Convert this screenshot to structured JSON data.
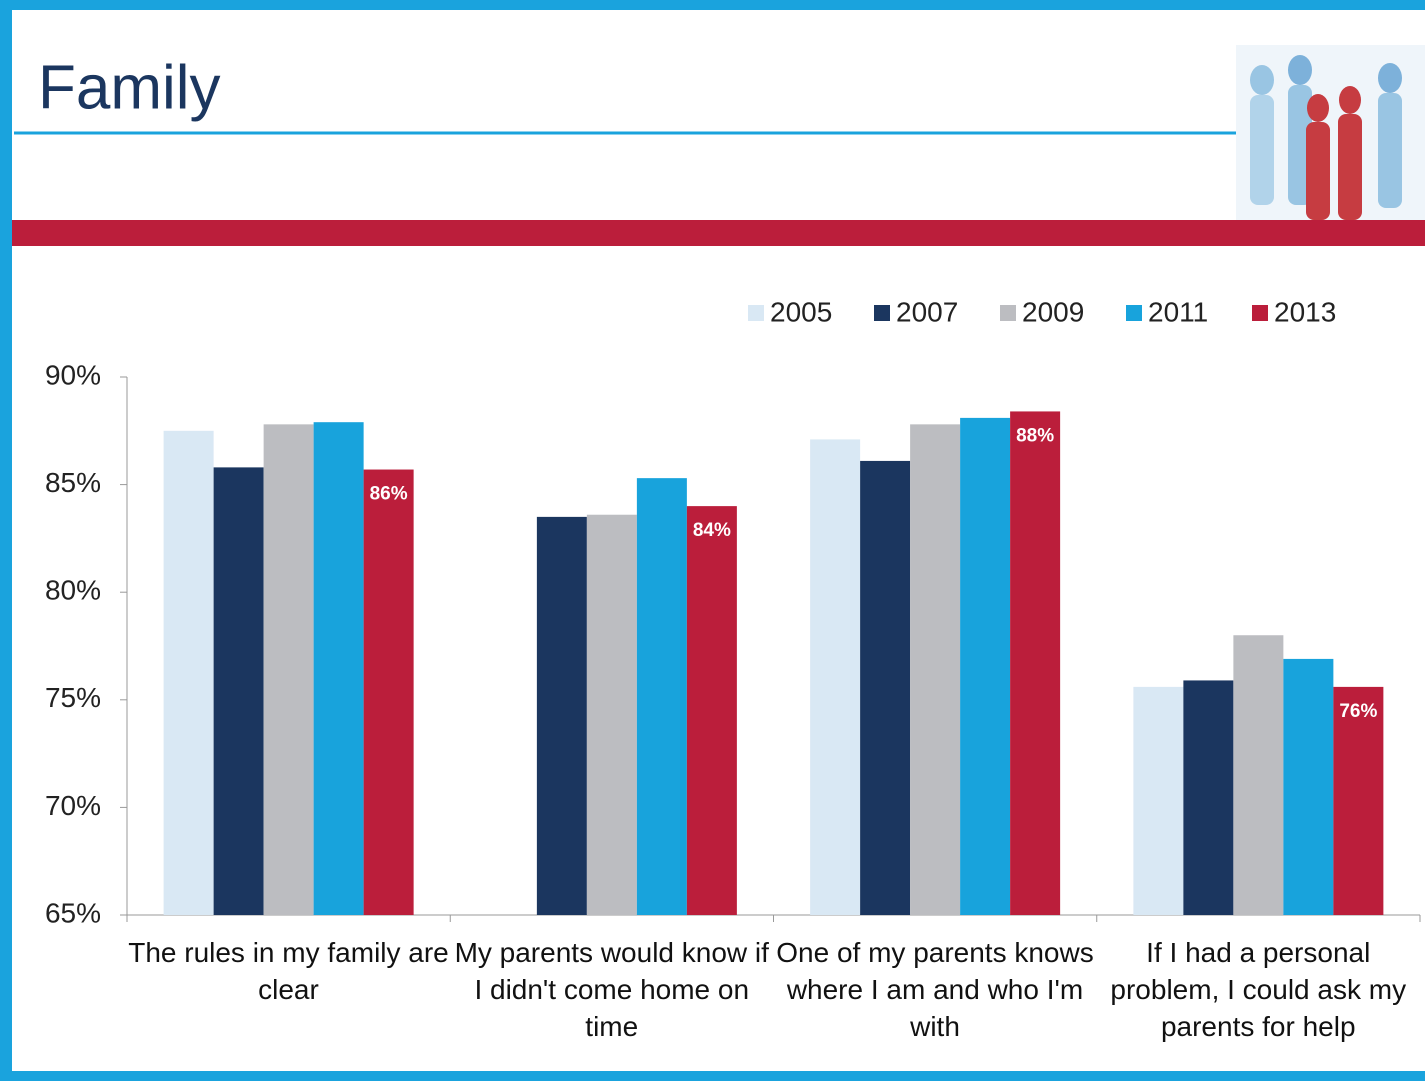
{
  "header": {
    "title": "Family"
  },
  "chart_data": {
    "type": "bar",
    "categories": [
      "The rules in my family are clear",
      "My parents would know if I didn't come home on time",
      "One of my parents knows where I am and who I'm with",
      "If I had a personal problem, I could ask my parents for help"
    ],
    "series": [
      {
        "name": "2005",
        "color": "#d9e8f4",
        "values": [
          87.5,
          null,
          87.1,
          75.6
        ]
      },
      {
        "name": "2007",
        "color": "#1b365f",
        "values": [
          85.8,
          83.5,
          86.1,
          75.9
        ]
      },
      {
        "name": "2009",
        "color": "#bcbdc1",
        "values": [
          87.8,
          83.6,
          87.8,
          78.0
        ]
      },
      {
        "name": "2011",
        "color": "#18a3dc",
        "values": [
          87.9,
          85.3,
          88.1,
          76.9
        ]
      },
      {
        "name": "2013",
        "color": "#bb1e3b",
        "values": [
          85.7,
          84.0,
          88.4,
          75.6
        ],
        "value_labels": [
          "86%",
          "84%",
          "88%",
          "76%"
        ]
      }
    ],
    "ylim": [
      65,
      90
    ],
    "yticks": [
      {
        "value": 65,
        "label": "65%"
      },
      {
        "value": 70,
        "label": "70%"
      },
      {
        "value": 75,
        "label": "75%"
      },
      {
        "value": 80,
        "label": "80%"
      },
      {
        "value": 85,
        "label": "85%"
      },
      {
        "value": 90,
        "label": "90%"
      }
    ],
    "legend": "top-right"
  }
}
